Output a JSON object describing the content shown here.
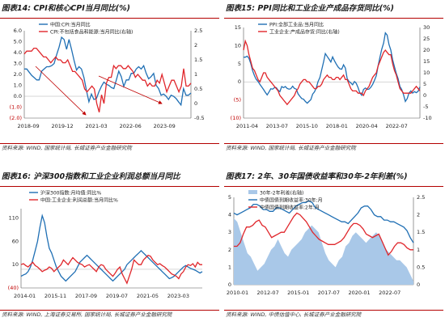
{
  "panels": [
    {
      "title": "图表14:  CPI和核心CPI当月同比(%)",
      "source": "资料来源: WIND, 国家统计局, 长城证券产业金融研究院",
      "chart_data": {
        "type": "line",
        "left_ticks": [
          "6.0",
          "5.0",
          "4.0",
          "3.0",
          "2.0",
          "1.0",
          "0.0",
          "(1.0)",
          "(2.0)"
        ],
        "right_ticks": [
          "2.5",
          "2",
          "1.5",
          "1",
          "0.5",
          "0",
          "-0.5"
        ],
        "x_ticks": [
          "2018-09",
          "2019-12",
          "2021-03",
          "2022-06",
          "2023-09"
        ],
        "left_ylim": [
          -2,
          6
        ],
        "right_ylim": [
          -0.5,
          2.5
        ],
        "legend_position": "top-center",
        "series": [
          {
            "name": "中国:CPI:当月同比",
            "axis": "left",
            "color": "#1f6fb4",
            "values": [
              2.5,
              2.5,
              2.2,
              1.9,
              1.7,
              1.5,
              1.5,
              2.3,
              2.5,
              2.7,
              2.7,
              2.8,
              3.0,
              3.8,
              4.5,
              5.4,
              5.2,
              4.3,
              5.2,
              4.3,
              3.3,
              2.4,
              2.7,
              2.5,
              1.7,
              0.5,
              -0.5,
              0.2,
              -0.3,
              -0.2,
              0.4,
              0.9,
              1.3,
              1.1,
              1.0,
              0.8,
              0.7,
              1.5,
              2.3,
              1.8,
              0.9,
              1.5,
              1.5,
              2.1,
              2.1,
              2.5,
              2.7,
              2.5,
              2.8,
              2.1,
              1.6,
              1.8,
              2.1,
              1.0,
              0.7,
              0.1,
              0.2,
              0.0,
              -0.3,
              0.1,
              0.0,
              -0.2,
              -0.5,
              -0.8,
              0.7,
              0.1,
              0.1,
              0.3
            ]
          },
          {
            "name": "CPI:不包括食品和能源:当月同比(右轴)",
            "axis": "right",
            "color": "#e0262b",
            "values": [
              1.7,
              1.8,
              1.8,
              1.8,
              1.9,
              1.9,
              1.8,
              1.7,
              1.6,
              1.6,
              1.5,
              1.4,
              1.5,
              1.6,
              1.5,
              1.5,
              1.4,
              1.4,
              1.5,
              1.3,
              1.1,
              1.1,
              1.0,
              0.9,
              0.8,
              0.5,
              0.4,
              0.5,
              0.6,
              0.5,
              0.0,
              -0.3,
              0.3,
              0.0,
              0.7,
              0.9,
              0.9,
              1.3,
              1.2,
              1.3,
              1.3,
              1.2,
              1.2,
              1.3,
              1.2,
              1.1,
              0.9,
              1.0,
              0.9,
              0.8,
              0.8,
              0.6,
              0.7,
              0.6,
              0.6,
              0.8,
              0.7,
              1.0,
              0.7,
              0.4,
              0.6,
              0.8,
              0.8,
              0.6,
              0.4,
              0.6,
              1.2,
              0.6,
              0.6,
              0.7
            ]
          }
        ],
        "annotations": [
          "arrow-red",
          "arrow-red"
        ]
      }
    },
    {
      "title": "图表15:  PPI同比和工业企业产成品存货同比(%)",
      "source": "资料来源: WIND, 国家统计局, 长城证券产业金融研究院",
      "chart_data": {
        "type": "line",
        "left_ticks": [
          "15",
          "10",
          "5",
          "0",
          "(5)",
          "(10)"
        ],
        "right_ticks": [
          "30",
          "25",
          "20",
          "15",
          "10",
          "5",
          "0",
          "-5",
          "-10"
        ],
        "x_ticks": [
          "2011-04",
          "2013-07",
          "2015-10",
          "2018-01",
          "2020-04",
          "2022-07"
        ],
        "left_ylim": [
          -10,
          15
        ],
        "right_ylim": [
          -10,
          30
        ],
        "legend_position": "top-center",
        "series": [
          {
            "name": "PPI:全部工业品:当月同比",
            "axis": "left",
            "color": "#1f6fb4",
            "values": [
              6.8,
              6.8,
              7.1,
              6.5,
              5.0,
              3.1,
              1.7,
              0.7,
              0.1,
              -0.7,
              -1.4,
              -2.1,
              -2.9,
              -3.6,
              -2.8,
              -1.9,
              -2.0,
              -1.6,
              -1.6,
              -2.3,
              -2.7,
              -1.3,
              -1.6,
              -1.3,
              -1.8,
              -2.0,
              -1.9,
              -1.2,
              -1.8,
              -2.0,
              -3.3,
              -4.0,
              -4.6,
              -4.8,
              -5.4,
              -5.9,
              -5.4,
              -4.9,
              -3.4,
              -2.8,
              -1.7,
              0.1,
              1.2,
              3.3,
              5.5,
              7.8,
              7.0,
              6.3,
              5.5,
              6.9,
              5.8,
              4.9,
              4.1,
              3.6,
              3.5,
              4.7,
              3.8,
              0.9,
              0.1,
              -0.3,
              -0.8,
              0.1,
              -0.4,
              -1.6,
              -3.1,
              -3.7,
              -2.1,
              -1.7,
              -2.1,
              -2.0,
              -1.5,
              -0.7,
              0.4,
              1.7,
              4.4,
              6.8,
              9.0,
              10.7,
              13.5,
              12.9,
              10.3,
              8.8,
              6.1,
              4.2,
              2.3,
              0.9,
              -1.3,
              -2.1,
              -3.6,
              -5.4,
              -4.6,
              -3.1,
              -2.5,
              -3.1,
              -2.7,
              -3.0,
              -2.6,
              -1.4
            ]
          },
          {
            "name": "工业企业:产成品存货:同比(右轴)",
            "axis": "right",
            "color": "#e0262b",
            "values": [
              20,
              24,
              22,
              18,
              15,
              12,
              11,
              9,
              7,
              6,
              8,
              10,
              10,
              8,
              7,
              6,
              5,
              4,
              3,
              2,
              0,
              -1,
              -2,
              -3,
              -4,
              -3,
              -2,
              -1,
              0,
              2,
              3,
              5,
              6,
              7,
              7,
              6,
              6,
              5,
              4,
              3,
              3,
              4,
              4,
              5,
              7,
              8,
              9,
              8,
              8,
              7,
              7,
              8,
              8,
              7,
              8,
              9,
              7,
              7,
              5,
              3,
              2,
              2,
              2,
              1,
              1,
              1,
              0,
              2,
              3,
              4,
              6,
              8,
              9,
              10,
              13,
              15,
              17,
              19,
              20,
              19,
              18,
              18,
              14,
              11,
              9,
              6,
              3,
              2,
              1,
              1,
              1,
              1,
              1,
              2,
              3,
              4,
              3,
              2
            ]
          }
        ]
      }
    },
    {
      "title": "图表16:  沪深300指数和工业企业利润总额当月同比",
      "source": "资料来源: WIND, 上海证券交易所, 国家统计局, 长城证券产业金融研究院",
      "chart_data": {
        "type": "line",
        "left_ticks": [
          "110",
          "60",
          "10",
          "(40)"
        ],
        "right_ticks": [],
        "x_ticks": [
          "2014-01",
          "2015-11",
          "2017-09",
          "2019-07",
          "2021-05",
          "2023-03"
        ],
        "left_ylim": [
          -40,
          130
        ],
        "legend_position": "top-left",
        "series": [
          {
            "name": "沪深300指数:月均值:同比%",
            "axis": "left",
            "color": "#1f6fb4",
            "values": [
              -15,
              -12,
              -10,
              -5,
              5,
              20,
              40,
              60,
              90,
              115,
              100,
              70,
              45,
              35,
              20,
              5,
              -5,
              -15,
              -20,
              -25,
              -20,
              -15,
              -10,
              -5,
              5,
              15,
              20,
              25,
              30,
              25,
              20,
              15,
              10,
              5,
              0,
              -5,
              -10,
              -15,
              -20,
              -25,
              -20,
              -15,
              -10,
              -5,
              0,
              10,
              15,
              20,
              25,
              30,
              35,
              40,
              35,
              30,
              25,
              20,
              15,
              10,
              5,
              0,
              -5,
              -10,
              -15,
              -20,
              -18,
              -15,
              -10,
              -5,
              0,
              5,
              8,
              5,
              2,
              0,
              -2,
              -5,
              -8,
              -5
            ]
          },
          {
            "name": "中国:工业企业:利润总额:当月同比%",
            "axis": "left",
            "color": "#e0262b",
            "values": [
              10,
              12,
              8,
              5,
              10,
              15,
              8,
              5,
              0,
              -5,
              -2,
              0,
              5,
              2,
              -5,
              0,
              5,
              10,
              20,
              15,
              10,
              18,
              25,
              20,
              15,
              12,
              10,
              5,
              8,
              10,
              5,
              0,
              -5,
              5,
              10,
              8,
              0,
              -5,
              -10,
              -15,
              -8,
              0,
              5,
              -10,
              -20,
              -30,
              -15,
              0,
              20,
              15,
              10,
              10,
              20,
              25,
              30,
              28,
              20,
              15,
              10,
              12,
              8,
              5,
              0,
              -5,
              -10,
              -12,
              -15,
              -20,
              -10,
              -5,
              5,
              10,
              8,
              12,
              5,
              15,
              10,
              10
            ]
          }
        ]
      }
    },
    {
      "title": "图表17:  2年、30年国债收益率和30年-2年利差(%)",
      "source": "资料来源: WIND, 中债估值中心, 长城证券产业金融研究院",
      "chart_data": {
        "type": "area",
        "left_ticks": [
          "5",
          "4",
          "3",
          "2",
          "1",
          "0"
        ],
        "right_ticks": [
          "2.5",
          "2",
          "1.5",
          "1",
          "0.5",
          "0"
        ],
        "x_ticks": [
          "2010-01",
          "2012-07",
          "2015-01",
          "2017-07",
          "2020-01",
          "2022-07"
        ],
        "left_ylim": [
          0,
          5
        ],
        "right_ylim": [
          0,
          2.5
        ],
        "legend_position": "top-center",
        "series": [
          {
            "name": "30年-2年利差(右轴)",
            "axis": "right",
            "color": "#a9c8e8",
            "values": [
              1.9,
              1.8,
              1.5,
              1.2,
              0.9,
              0.8,
              0.6,
              0.4,
              0.5,
              0.6,
              0.8,
              1.0,
              1.1,
              1.3,
              1.1,
              0.9,
              0.8,
              1.0,
              1.1,
              1.2,
              1.3,
              1.5,
              1.6,
              1.7,
              1.6,
              1.5,
              1.2,
              0.9,
              0.7,
              0.6,
              0.5,
              0.7,
              0.8,
              1.1,
              1.2,
              1.4,
              1.5,
              1.4,
              1.3,
              1.2,
              1.3,
              1.4,
              1.5,
              1.4,
              1.2,
              1.0,
              0.9,
              0.8,
              0.7,
              0.7,
              0.6,
              0.5,
              0.3,
              0.1
            ]
          },
          {
            "name": "中债国债到期收益率:30年:月",
            "axis": "left",
            "color": "#1f6fb4",
            "values": [
              4.1,
              4.0,
              4.1,
              4.2,
              4.3,
              4.4,
              4.6,
              4.6,
              4.5,
              4.3,
              4.3,
              4.2,
              4.2,
              4.4,
              4.4,
              4.3,
              4.2,
              4.1,
              4.3,
              4.5,
              4.6,
              4.7,
              4.7,
              4.8,
              4.7,
              4.4,
              4.3,
              4.2,
              4.1,
              4.0,
              3.9,
              3.8,
              3.7,
              3.6,
              3.6,
              3.5,
              3.7,
              3.9,
              4.1,
              4.4,
              4.5,
              4.5,
              4.3,
              4.0,
              3.9,
              3.9,
              3.7,
              3.7,
              3.6,
              3.6,
              3.5,
              3.4,
              3.3,
              3.1,
              2.7,
              2.4
            ]
          },
          {
            "name": "中债国债到期收益率:2年:月",
            "axis": "left",
            "color": "#e0262b",
            "values": [
              2.2,
              2.2,
              2.4,
              2.9,
              3.3,
              3.3,
              3.4,
              3.6,
              3.7,
              3.4,
              3.3,
              3.0,
              2.7,
              2.8,
              2.9,
              3.0,
              3.0,
              3.3,
              3.6,
              3.9,
              4.1,
              4.0,
              3.8,
              3.6,
              3.3,
              3.0,
              2.8,
              2.6,
              2.5,
              2.4,
              2.3,
              2.3,
              2.3,
              2.4,
              2.5,
              2.7,
              3.0,
              3.3,
              3.5,
              3.5,
              3.4,
              3.2,
              2.9,
              2.8,
              2.7,
              2.8,
              2.9,
              2.5,
              2.1,
              1.7,
              1.9,
              2.2,
              2.4,
              2.4,
              2.3,
              2.1,
              2.0,
              2.0
            ]
          }
        ]
      }
    }
  ]
}
